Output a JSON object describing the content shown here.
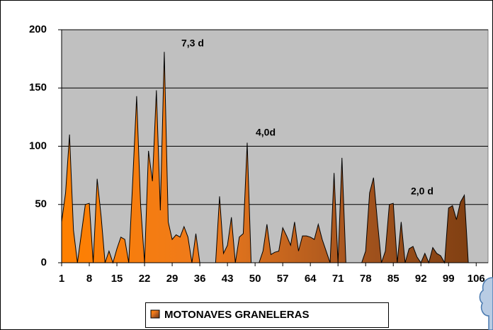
{
  "chart_data": {
    "type": "area",
    "x": [
      1,
      2,
      3,
      4,
      5,
      6,
      7,
      8,
      9,
      10,
      11,
      12,
      13,
      14,
      15,
      16,
      17,
      18,
      19,
      20,
      21,
      22,
      23,
      24,
      25,
      26,
      27,
      28,
      29,
      30,
      31,
      32,
      33,
      34,
      35,
      36,
      37,
      38,
      39,
      40,
      41,
      42,
      43,
      44,
      45,
      46,
      47,
      48,
      49,
      50,
      51,
      52,
      53,
      54,
      55,
      56,
      57,
      58,
      59,
      60,
      61,
      62,
      63,
      64,
      65,
      66,
      67,
      68,
      69,
      70,
      71,
      72,
      73,
      74,
      75,
      76,
      77,
      78,
      79,
      80,
      81,
      82,
      83,
      84,
      85,
      86,
      87,
      88,
      89,
      90,
      91,
      92,
      93,
      94,
      95,
      96,
      97,
      98,
      99,
      100,
      101,
      102,
      103,
      104,
      105,
      106,
      107,
      108,
      109
    ],
    "values": [
      35,
      60,
      110,
      28,
      0,
      25,
      50,
      51,
      0,
      72,
      40,
      0,
      10,
      0,
      12,
      22,
      20,
      0,
      70,
      143,
      50,
      0,
      96,
      70,
      148,
      45,
      181,
      35,
      20,
      24,
      22,
      31,
      22,
      0,
      25,
      0,
      0,
      0,
      0,
      0,
      57,
      8,
      15,
      39,
      0,
      22,
      25,
      103,
      0,
      0,
      0,
      10,
      33,
      7,
      9,
      10,
      30,
      23,
      15,
      35,
      10,
      23,
      23,
      22,
      20,
      33,
      20,
      10,
      0,
      77,
      0,
      90,
      0,
      0,
      0,
      0,
      0,
      10,
      60,
      73,
      35,
      0,
      10,
      50,
      51,
      0,
      35,
      0,
      12,
      14,
      5,
      0,
      8,
      0,
      13,
      8,
      6,
      0,
      47,
      49,
      37,
      52,
      58,
      0,
      0,
      0,
      0,
      0,
      0
    ],
    "series_name": "MOTONAVES GRANELERAS",
    "colors": [
      "#ff8000",
      "#ee7a1c",
      "#a8561f",
      "#7a3c10"
    ],
    "xlim": [
      1,
      109
    ],
    "xticks": [
      1,
      8,
      15,
      22,
      29,
      36,
      43,
      50,
      57,
      64,
      71,
      78,
      85,
      92,
      99,
      106
    ],
    "ylim": [
      0,
      200
    ],
    "yticks": [
      0,
      50,
      100,
      150,
      200
    ],
    "grid": true,
    "legend": "bottom",
    "annotations": [
      "7,3 d",
      "4,0d",
      "2,0  d"
    ]
  }
}
